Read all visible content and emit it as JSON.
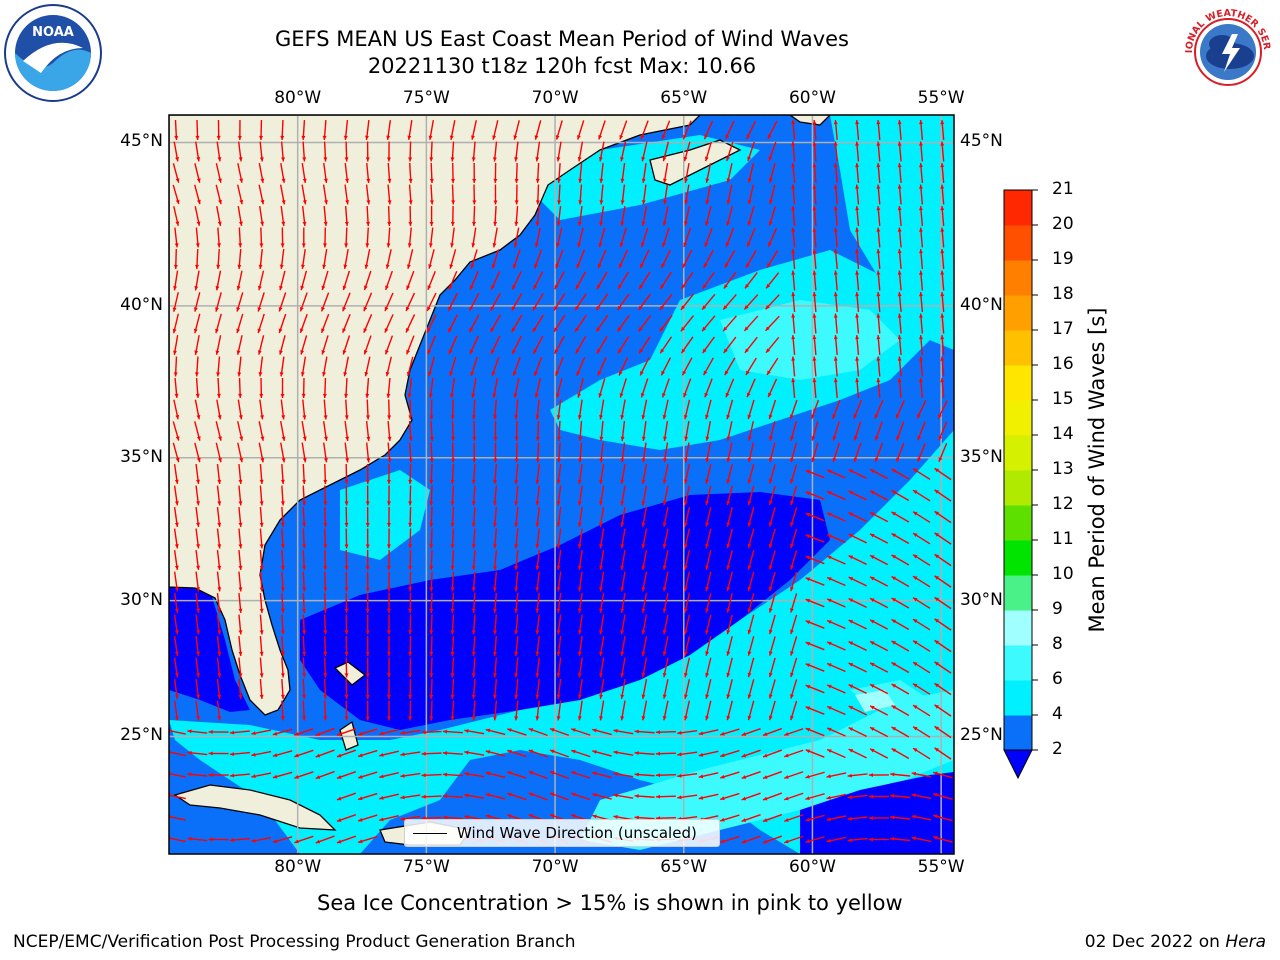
{
  "title": {
    "line1": "GEFS MEAN US East Coast Mean Period of Wind Waves",
    "line2": "20221130 t18z 120h fcst   Max: 10.66"
  },
  "logos": {
    "left": {
      "name": "noaa-logo",
      "text": "NOAA"
    },
    "right": {
      "name": "nws-logo",
      "text": "NATIONAL WEATHER SERVICE"
    }
  },
  "map": {
    "lon_labels": [
      "80°W",
      "75°W",
      "70°W",
      "65°W",
      "60°W",
      "55°W"
    ],
    "lat_labels": [
      "45°N",
      "40°N",
      "35°N",
      "30°N",
      "25°N"
    ],
    "lon_range": [
      -85,
      -54.5
    ],
    "lat_range": [
      20.5,
      45.8
    ],
    "legend": "Wind Wave Direction (unscaled)",
    "arrow_color": "#ff0000",
    "land_color": "#efefdc",
    "grid_color": "#b0b0b0"
  },
  "colorbar": {
    "label": "Mean Period of Wind Waves [s]",
    "ticks": [
      "2",
      "4",
      "6",
      "8",
      "9",
      "10",
      "11",
      "12",
      "13",
      "14",
      "15",
      "16",
      "17",
      "18",
      "19",
      "20",
      "21"
    ],
    "colors": [
      "#0a70fa",
      "#00f0ff",
      "#3dfaff",
      "#a0ffff",
      "#4af088",
      "#00e400",
      "#5de000",
      "#b0ea00",
      "#d5f000",
      "#f0f000",
      "#ffe600",
      "#ffc000",
      "#ffa000",
      "#ff8000",
      "#ff5000",
      "#ff2800",
      "#ff0000"
    ],
    "under_color": "#0000ff"
  },
  "note": "Sea Ice Concentration > 15% is shown in pink to yellow",
  "footer": {
    "left": "NCEP/EMC/Verification Post Processing Product Generation Branch",
    "right_date": "02 Dec 2022 on ",
    "right_host": "Hera"
  }
}
